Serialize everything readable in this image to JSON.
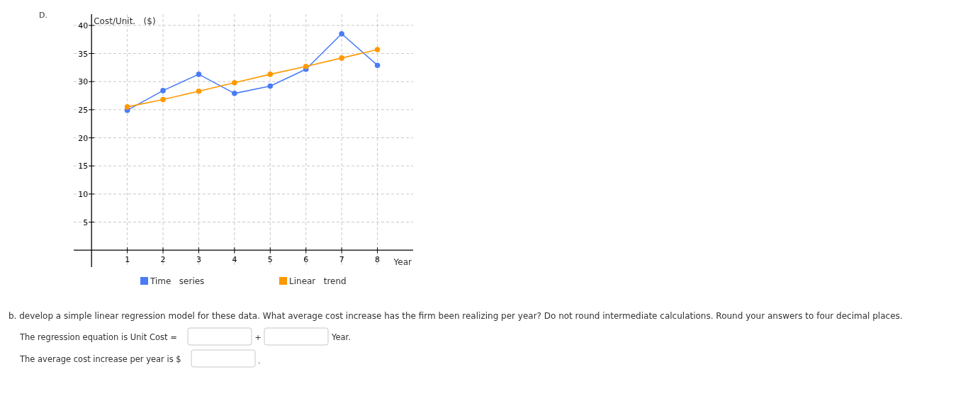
{
  "chart_data": {
    "type": "line",
    "xlabel": "Year",
    "ylabel": "Cost/Unit.   ($)",
    "x": [
      1,
      2,
      3,
      4,
      5,
      6,
      7,
      8
    ],
    "series": [
      {
        "name": "Time   series",
        "color": "#4a7cf7",
        "values": [
          24.9,
          28.4,
          31.3,
          27.9,
          29.2,
          32.2,
          38.5,
          32.9
        ]
      },
      {
        "name": "Linear   trend",
        "color": "#ff9900",
        "values": [
          25.5,
          26.8,
          28.3,
          29.8,
          31.3,
          32.7,
          34.2,
          35.7
        ]
      }
    ],
    "xlim": [
      -0.5,
      9
    ],
    "xticks": [
      1,
      2,
      3,
      4,
      5,
      6,
      7,
      8
    ],
    "ylim": [
      -3,
      42
    ],
    "yticks": [
      5,
      10,
      15,
      20,
      25,
      30,
      35,
      40
    ],
    "grid": true,
    "legend": "bottom",
    "marker": "circle",
    "line_style": "solid",
    "annotations": [
      "D.",
      "b. develop a simple linear regression model for these data. What average cost increase has the firm been realizing per year? Do not round intermediate calculations. Round your answers to four decimal places.",
      "The regression equation is Unit Cost =",
      "+",
      "Year.",
      "The average cost increase per year is $",
      "."
    ]
  }
}
